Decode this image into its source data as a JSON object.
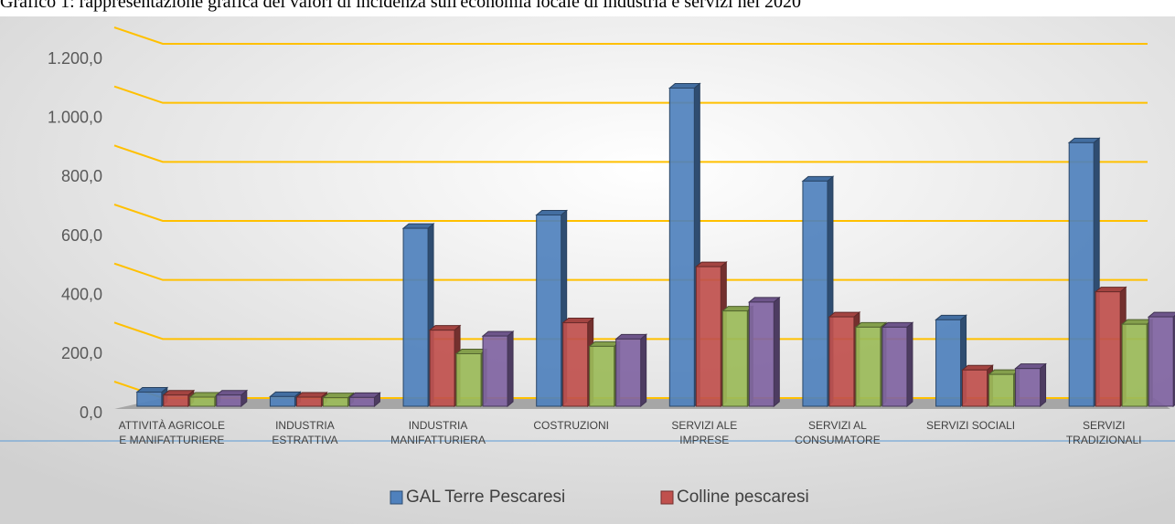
{
  "chart_data": {
    "type": "bar3d",
    "title": "Grafico 1: rappresentazione grafica dei valori di incidenza sull'economia locale di industria e servizi nel 2020",
    "categories": [
      "ATTIVITÀ AGRICOLE E MANIFATTURIERE",
      "INDUSTRIA ESTRATTIVA",
      "INDUSTRIA MANIFATTURIERA",
      "COSTRUZIONI",
      "SERVIZI ALE IMPRESE",
      "SERVIZI AL CONSUMATORE",
      "SERVIZI SOCIALI",
      "SERVIZI TRADIZIONALI"
    ],
    "series": [
      {
        "name": "GAL Terre Pescaresi",
        "color": "#4f81bd",
        "values": [
          20,
          5,
          575,
          620,
          1050,
          735,
          265,
          865
        ]
      },
      {
        "name": "Colline pescaresi",
        "color": "#c0504d",
        "values": [
          10,
          3,
          230,
          255,
          445,
          275,
          95,
          360
        ]
      },
      {
        "color": "#9bbb59",
        "values": [
          3,
          1,
          150,
          175,
          295,
          240,
          80,
          250
        ]
      },
      {
        "color": "#8064a2",
        "values": [
          10,
          2,
          210,
          200,
          325,
          240,
          100,
          275
        ]
      }
    ],
    "ylim": [
      0,
      1200
    ],
    "yticks": [
      {
        "value": 0,
        "label": "0,0"
      },
      {
        "value": 200,
        "label": "200,0"
      },
      {
        "value": 400,
        "label": "400,0"
      },
      {
        "value": 600,
        "label": "600,0"
      },
      {
        "value": 800,
        "label": "800,0"
      },
      {
        "value": 1000,
        "label": "1.000,0"
      },
      {
        "value": 1200,
        "label": "1.200,0"
      }
    ],
    "grid": true,
    "legend": "bottom"
  }
}
